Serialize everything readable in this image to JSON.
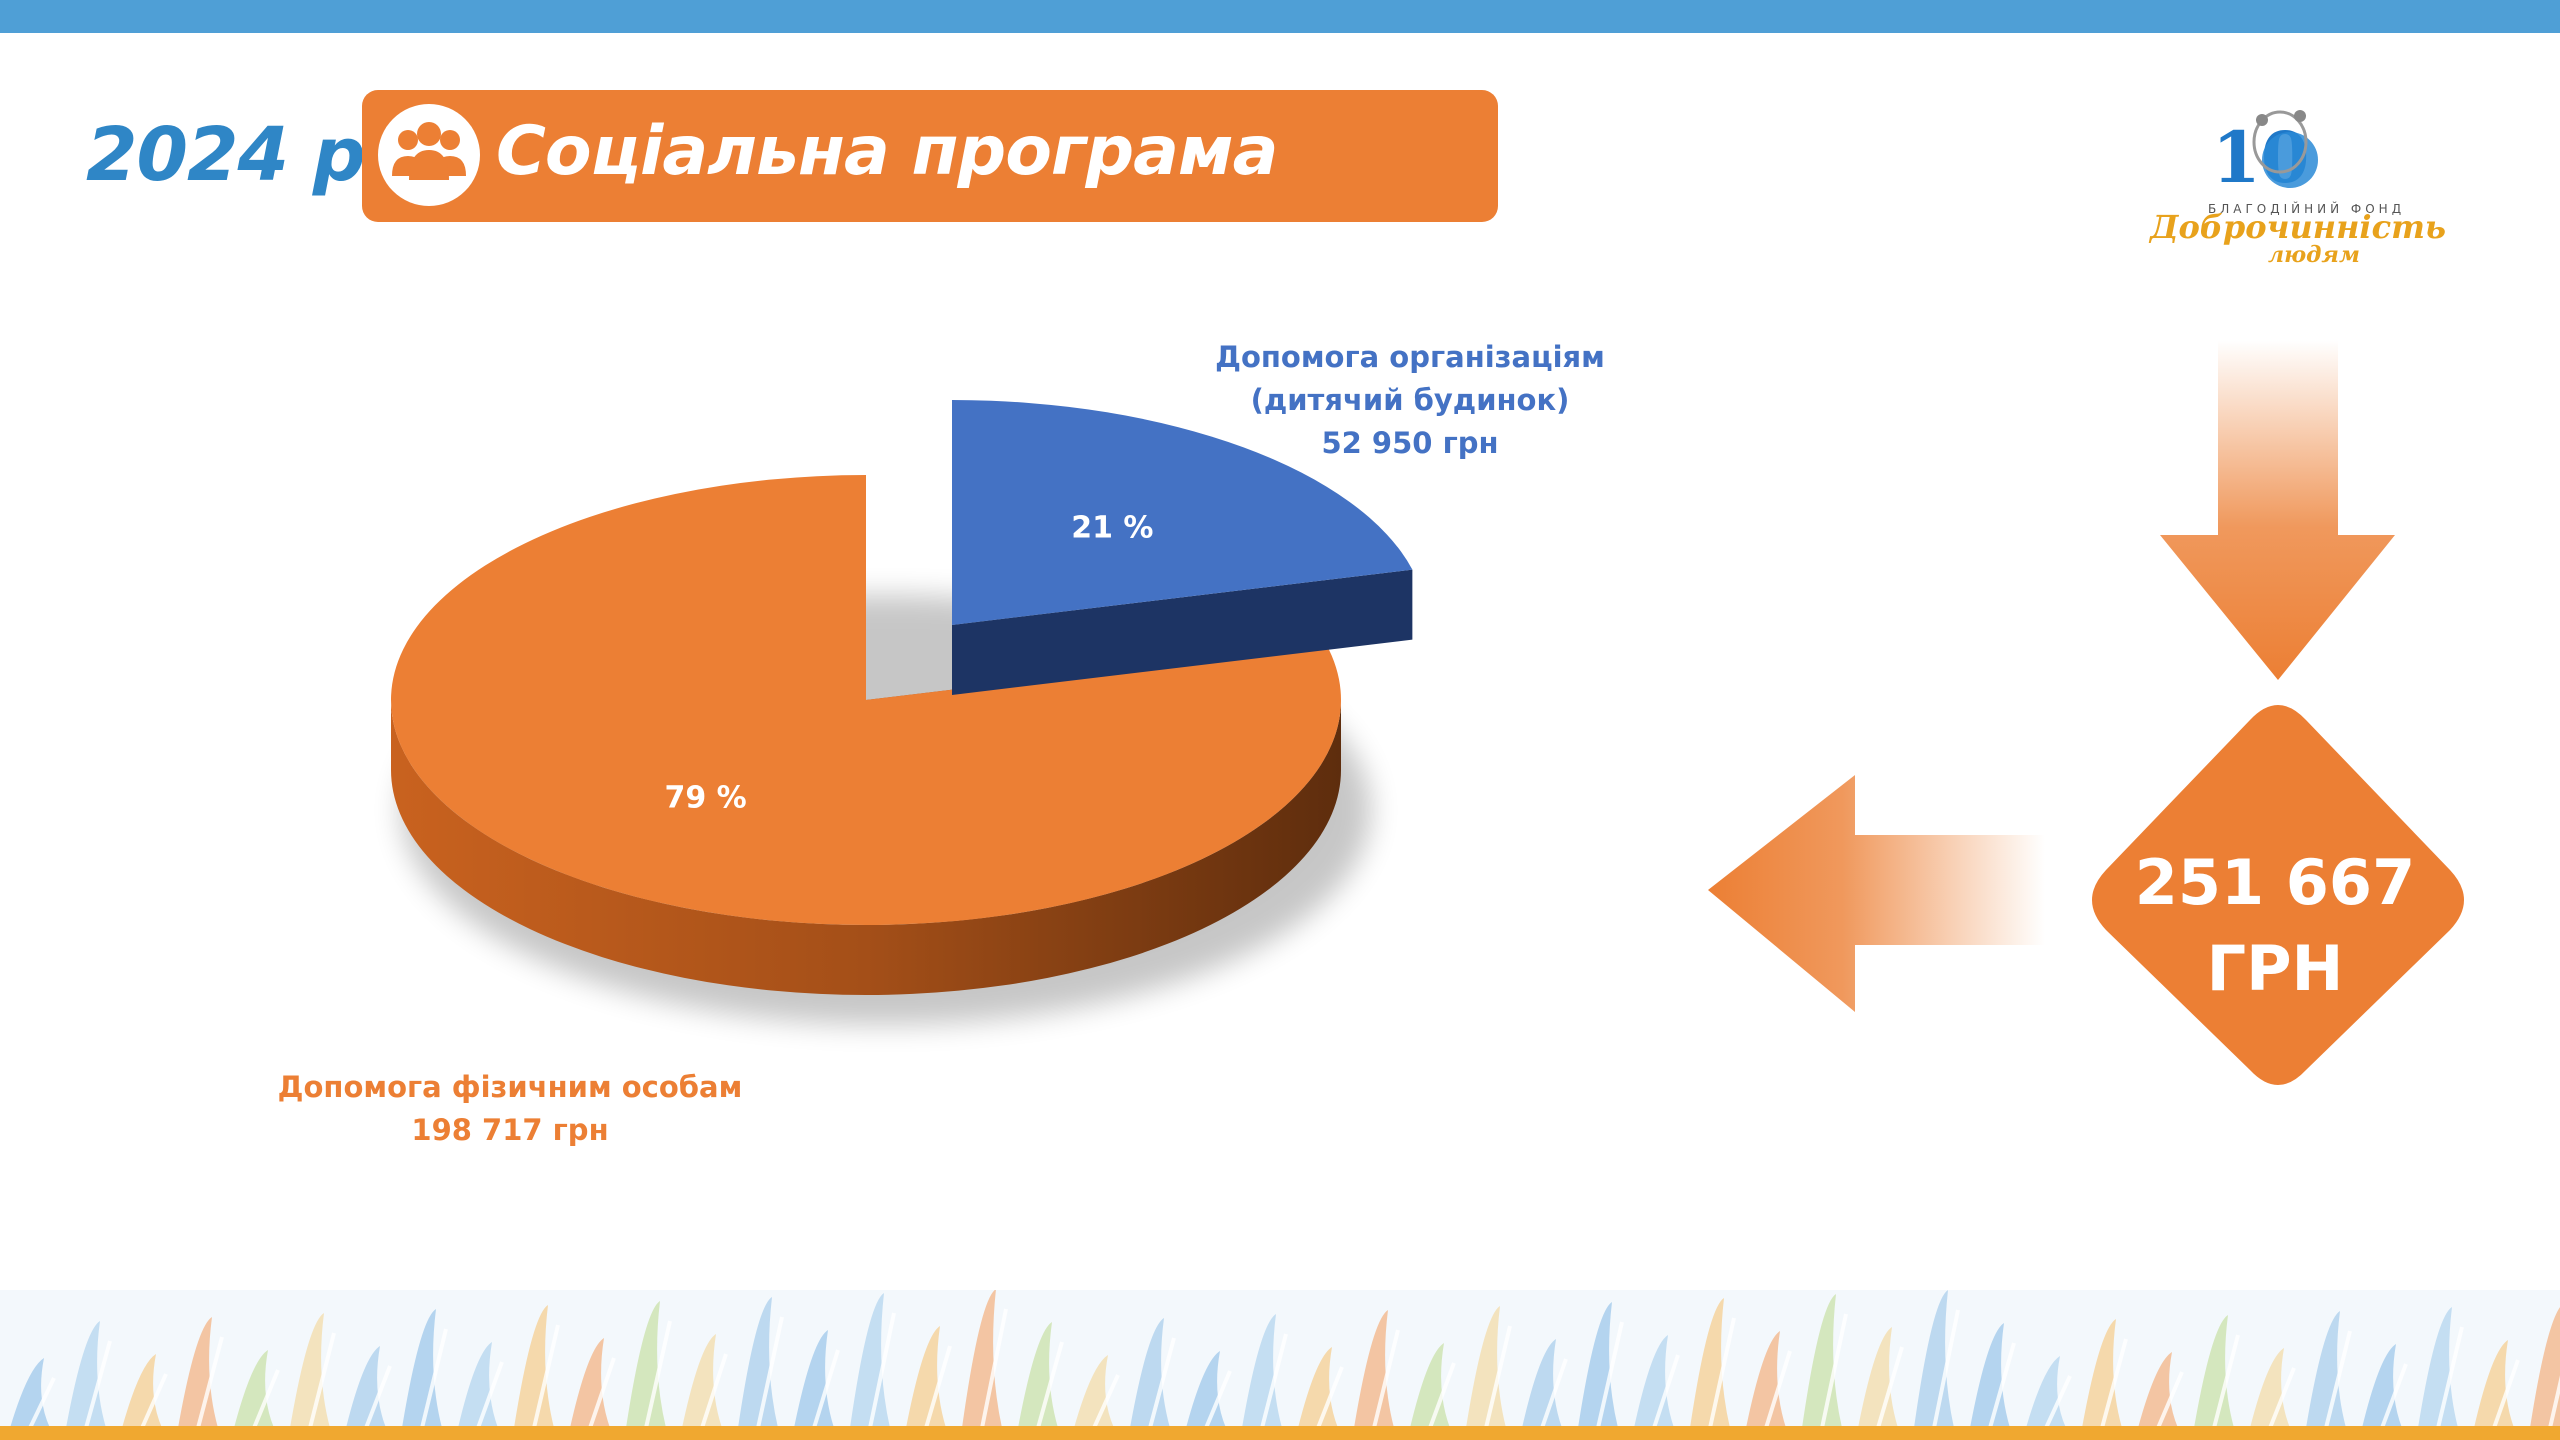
{
  "header": {
    "year": "2024 р.",
    "title": "Соціальна програма",
    "icon": "people-group-icon",
    "banner_color": "#ec7f34",
    "year_color": "#2f86c6",
    "top_bar_color": "#4f9fd6"
  },
  "logo": {
    "mark": "10",
    "small_text": "БЛАГОДІЙНИЙ ФОНД",
    "name": "Доброчинність",
    "sub": "людям"
  },
  "chart_data": {
    "type": "pie",
    "style": "3d-exploded",
    "title": "",
    "slices": [
      {
        "label": "Допомога організаціям (дитячий будинок)",
        "label_lines": [
          "Допомога організаціям",
          "(дитячий будинок)"
        ],
        "value": 52950,
        "amount_text": "52 950 грн",
        "percent_text": "21 %",
        "color": "#4472c4"
      },
      {
        "label": "Допомога фізичним особам",
        "label_lines": [
          "Допомога фізичним особам"
        ],
        "value": 198717,
        "amount_text": "198 717 грн",
        "percent_text": "79 %",
        "color": "#ec7f34"
      }
    ]
  },
  "total": {
    "amount": "251 667",
    "unit": "ГРН",
    "color": "#ec7f34"
  }
}
